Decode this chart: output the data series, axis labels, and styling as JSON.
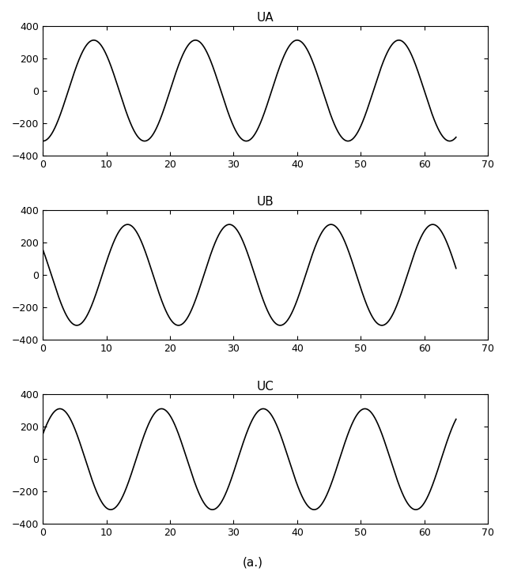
{
  "title_UA": "UA",
  "title_UB": "UB",
  "title_UC": "UC",
  "amplitude": 311,
  "x_start": 0,
  "x_end": 65,
  "xlim": [
    0,
    70
  ],
  "ylim": [
    -400,
    400
  ],
  "yticks": [
    -400,
    -200,
    0,
    200,
    400
  ],
  "xticks": [
    0,
    10,
    20,
    30,
    40,
    50,
    60,
    70
  ],
  "period": 16.0,
  "peak_A": 8.0,
  "peak_B": 13.333,
  "peak_C": 2.667,
  "caption": "(a.)",
  "line_color": "#000000",
  "bg_color": "#ffffff",
  "line_width": 1.2,
  "title_fontsize": 11,
  "tick_labelsize": 9,
  "caption_fontsize": 11,
  "figsize": [
    6.4,
    7.33
  ],
  "dpi": 100
}
